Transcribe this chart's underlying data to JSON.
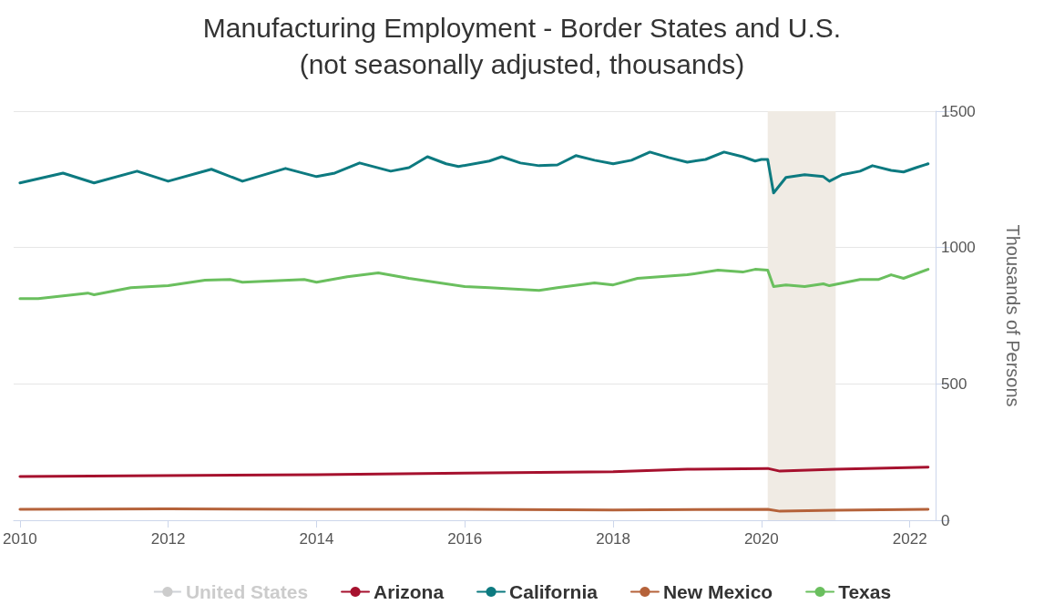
{
  "chart_data": {
    "type": "line",
    "title": "Manufacturing Employment - Border States and U.S.",
    "subtitle": "(not seasonally adjusted, thousands)",
    "ylabel": "Thousands of Persons",
    "xlim": [
      "2009-12-01",
      "2022-05-08"
    ],
    "xticks": [
      "2010",
      "2012",
      "2014",
      "2016",
      "2018",
      "2020",
      "2022"
    ],
    "ylim": [
      0,
      1500
    ],
    "yticks": [
      0,
      500,
      1000,
      1500
    ],
    "grid": "y",
    "legend": "bottom",
    "bands": [
      {
        "axis": "x",
        "from": "2020-02",
        "to": "2021-01",
        "color": "#f0ebe4"
      }
    ],
    "series": [
      {
        "name": "United States",
        "color": "#cccccc"
      },
      {
        "name": "Arizona",
        "color": "#a6112e",
        "x": [
          "2010-01",
          "2014-01",
          "2016-01",
          "2018-01",
          "2019-01",
          "2020-02",
          "2020-04",
          "2021-01",
          "2022-04"
        ],
        "values": [
          160,
          167,
          173,
          178,
          187,
          190,
          180,
          187,
          195
        ]
      },
      {
        "name": "California",
        "color": "#0d7a80",
        "x": [
          "2010-01",
          "2010-08",
          "2011-01",
          "2011-08",
          "2012-01",
          "2012-08",
          "2013-01",
          "2013-08",
          "2014-01",
          "2014-04",
          "2014-08",
          "2015-01",
          "2015-04",
          "2015-07",
          "2015-10",
          "2015-12",
          "2016-05",
          "2016-07",
          "2016-10",
          "2017-01",
          "2017-04",
          "2017-07",
          "2017-10",
          "2018-01",
          "2018-04",
          "2018-07",
          "2018-10",
          "2019-01",
          "2019-04",
          "2019-07",
          "2019-10",
          "2019-12",
          "2020-01",
          "2020-02",
          "2020-03",
          "2020-05",
          "2020-08",
          "2020-11",
          "2020-12",
          "2021-02",
          "2021-05",
          "2021-07",
          "2021-10",
          "2021-12",
          "2022-02",
          "2022-04"
        ],
        "values": [
          1237,
          1273,
          1237,
          1280,
          1243,
          1287,
          1243,
          1290,
          1260,
          1273,
          1310,
          1280,
          1293,
          1333,
          1307,
          1297,
          1317,
          1333,
          1310,
          1300,
          1303,
          1337,
          1320,
          1307,
          1320,
          1350,
          1330,
          1313,
          1323,
          1350,
          1333,
          1317,
          1323,
          1323,
          1200,
          1257,
          1267,
          1260,
          1243,
          1267,
          1280,
          1300,
          1283,
          1277,
          1293,
          1307
        ]
      },
      {
        "name": "New Mexico",
        "color": "#b5623a",
        "x": [
          "2010-01",
          "2012-01",
          "2014-01",
          "2016-01",
          "2018-01",
          "2020-02",
          "2020-04",
          "2021-01",
          "2022-04"
        ],
        "values": [
          40,
          42,
          40,
          40,
          38,
          40,
          33,
          37,
          40
        ]
      },
      {
        "name": "Texas",
        "color": "#6abf5e",
        "x": [
          "2010-01",
          "2010-04",
          "2010-12",
          "2011-01",
          "2011-07",
          "2012-01",
          "2012-07",
          "2012-11",
          "2013-01",
          "2013-11",
          "2014-01",
          "2014-06",
          "2014-11",
          "2015-04",
          "2016-01",
          "2016-05",
          "2017-01",
          "2017-04",
          "2017-10",
          "2018-01",
          "2018-05",
          "2019-01",
          "2019-06",
          "2019-10",
          "2019-12",
          "2020-02",
          "2020-03",
          "2020-05",
          "2020-08",
          "2020-11",
          "2020-12",
          "2021-05",
          "2021-08",
          "2021-10",
          "2021-12",
          "2022-04"
        ],
        "values": [
          813,
          813,
          833,
          827,
          853,
          860,
          880,
          883,
          873,
          883,
          873,
          893,
          907,
          887,
          857,
          853,
          843,
          853,
          870,
          863,
          887,
          900,
          917,
          910,
          920,
          917,
          857,
          863,
          857,
          867,
          860,
          883,
          883,
          900,
          887,
          920
        ]
      }
    ]
  }
}
